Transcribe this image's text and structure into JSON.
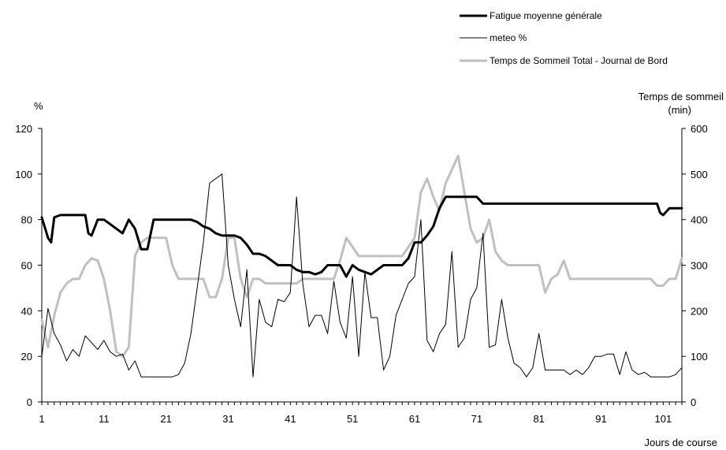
{
  "chart_data": {
    "type": "line",
    "x_label": "Jours de course",
    "y_left_label": "%",
    "y_right_label_line1": "Temps de sommeil",
    "y_right_label_line2": "(min)",
    "y_left_range": [
      0,
      120
    ],
    "y_right_range": [
      0,
      600
    ],
    "y_left_ticks": [
      "0",
      "20",
      "40",
      "60",
      "80",
      "100",
      "120"
    ],
    "y_right_ticks": [
      "0",
      "100",
      "200",
      "300",
      "400",
      "500",
      "600"
    ],
    "x_ticks": [
      "1",
      "11",
      "21",
      "31",
      "41",
      "51",
      "61",
      "71",
      "81",
      "91",
      "101"
    ],
    "x_range": [
      1,
      104
    ],
    "grid": false,
    "legend_position": "top-right",
    "series": [
      {
        "name": "Fatigue moyenne générale",
        "axis": "left",
        "color": "#000000",
        "width": "thick",
        "points": [
          [
            1,
            81
          ],
          [
            2,
            72
          ],
          [
            2.5,
            70
          ],
          [
            3,
            81
          ],
          [
            4,
            82
          ],
          [
            5,
            82
          ],
          [
            6,
            82
          ],
          [
            7,
            82
          ],
          [
            8,
            82
          ],
          [
            8.5,
            74
          ],
          [
            9,
            73
          ],
          [
            10,
            80
          ],
          [
            11,
            80
          ],
          [
            12,
            78
          ],
          [
            13,
            76
          ],
          [
            14,
            74
          ],
          [
            15,
            80
          ],
          [
            16,
            76
          ],
          [
            17,
            67
          ],
          [
            18,
            67
          ],
          [
            19,
            80
          ],
          [
            20,
            80
          ],
          [
            21,
            80
          ],
          [
            22,
            80
          ],
          [
            23,
            80
          ],
          [
            24,
            80
          ],
          [
            25,
            80
          ],
          [
            26,
            79
          ],
          [
            27,
            77
          ],
          [
            28,
            76
          ],
          [
            29,
            74
          ],
          [
            30,
            73
          ],
          [
            31,
            73
          ],
          [
            32,
            73
          ],
          [
            33,
            72
          ],
          [
            34,
            69
          ],
          [
            35,
            65
          ],
          [
            36,
            65
          ],
          [
            37,
            64
          ],
          [
            38,
            62
          ],
          [
            39,
            60
          ],
          [
            40,
            60
          ],
          [
            41,
            60
          ],
          [
            42,
            58
          ],
          [
            43,
            57
          ],
          [
            44,
            57
          ],
          [
            45,
            56
          ],
          [
            46,
            57
          ],
          [
            47,
            60
          ],
          [
            48,
            60
          ],
          [
            49,
            60
          ],
          [
            50,
            55
          ],
          [
            51,
            60
          ],
          [
            52,
            58
          ],
          [
            53,
            57
          ],
          [
            54,
            56
          ],
          [
            55,
            58
          ],
          [
            56,
            60
          ],
          [
            57,
            60
          ],
          [
            58,
            60
          ],
          [
            59,
            60
          ],
          [
            60,
            63
          ],
          [
            61,
            70
          ],
          [
            62,
            70
          ],
          [
            63,
            73
          ],
          [
            64,
            77
          ],
          [
            65,
            85
          ],
          [
            66,
            90
          ],
          [
            67,
            90
          ],
          [
            68,
            90
          ],
          [
            69,
            90
          ],
          [
            70,
            90
          ],
          [
            71,
            90
          ],
          [
            72,
            87
          ],
          [
            73,
            87
          ],
          [
            74,
            87
          ],
          [
            75,
            87
          ],
          [
            80,
            87
          ],
          [
            90,
            87
          ],
          [
            95,
            87
          ],
          [
            100,
            87
          ],
          [
            100.5,
            83
          ],
          [
            101,
            82
          ],
          [
            102,
            85
          ],
          [
            103,
            85
          ],
          [
            104,
            85
          ]
        ]
      },
      {
        "name": "meteo  %",
        "axis": "left",
        "color": "#000000",
        "width": "thin",
        "points": [
          [
            1,
            20
          ],
          [
            2,
            41
          ],
          [
            3,
            30
          ],
          [
            4,
            25
          ],
          [
            5,
            18
          ],
          [
            6,
            23
          ],
          [
            7,
            20
          ],
          [
            8,
            29
          ],
          [
            9,
            26
          ],
          [
            10,
            23
          ],
          [
            11,
            27
          ],
          [
            12,
            22
          ],
          [
            13,
            20
          ],
          [
            14,
            21
          ],
          [
            15,
            14
          ],
          [
            16,
            18
          ],
          [
            17,
            11
          ],
          [
            18,
            11
          ],
          [
            19,
            11
          ],
          [
            20,
            11
          ],
          [
            21,
            11
          ],
          [
            22,
            11
          ],
          [
            23,
            12
          ],
          [
            24,
            17
          ],
          [
            25,
            30
          ],
          [
            26,
            50
          ],
          [
            27,
            70
          ],
          [
            28,
            96
          ],
          [
            29,
            98
          ],
          [
            30,
            100
          ],
          [
            31,
            60
          ],
          [
            32,
            45
          ],
          [
            33,
            33
          ],
          [
            34,
            58
          ],
          [
            35,
            11
          ],
          [
            36,
            45
          ],
          [
            37,
            35
          ],
          [
            38,
            33
          ],
          [
            39,
            45
          ],
          [
            40,
            44
          ],
          [
            41,
            48
          ],
          [
            42,
            90
          ],
          [
            43,
            52
          ],
          [
            44,
            33
          ],
          [
            45,
            38
          ],
          [
            46,
            38
          ],
          [
            47,
            30
          ],
          [
            48,
            53
          ],
          [
            49,
            35
          ],
          [
            50,
            28
          ],
          [
            51,
            55
          ],
          [
            52,
            20
          ],
          [
            53,
            57
          ],
          [
            54,
            37
          ],
          [
            55,
            37
          ],
          [
            56,
            14
          ],
          [
            57,
            20
          ],
          [
            58,
            38
          ],
          [
            59,
            45
          ],
          [
            60,
            52
          ],
          [
            61,
            55
          ],
          [
            62,
            80
          ],
          [
            63,
            27
          ],
          [
            64,
            22
          ],
          [
            65,
            30
          ],
          [
            66,
            34
          ],
          [
            67,
            66
          ],
          [
            68,
            24
          ],
          [
            69,
            28
          ],
          [
            70,
            45
          ],
          [
            71,
            50
          ],
          [
            72,
            74
          ],
          [
            73,
            24
          ],
          [
            74,
            25
          ],
          [
            75,
            45
          ],
          [
            76,
            28
          ],
          [
            77,
            17
          ],
          [
            78,
            15
          ],
          [
            79,
            11
          ],
          [
            80,
            15
          ],
          [
            81,
            30
          ],
          [
            82,
            14
          ],
          [
            83,
            14
          ],
          [
            84,
            14
          ],
          [
            85,
            14
          ],
          [
            86,
            12
          ],
          [
            87,
            14
          ],
          [
            88,
            12
          ],
          [
            89,
            15
          ],
          [
            90,
            20
          ],
          [
            91,
            20
          ],
          [
            92,
            21
          ],
          [
            93,
            21
          ],
          [
            94,
            12
          ],
          [
            95,
            22
          ],
          [
            96,
            14
          ],
          [
            97,
            12
          ],
          [
            98,
            13
          ],
          [
            99,
            11
          ],
          [
            100,
            11
          ],
          [
            101,
            11
          ],
          [
            102,
            11
          ],
          [
            103,
            12
          ],
          [
            104,
            15
          ]
        ]
      },
      {
        "name": "Temps de Sommeil Total - Journal de Bord",
        "axis": "right",
        "color": "#c0c0c0",
        "width": "thick",
        "points": [
          [
            1,
            180
          ],
          [
            2,
            120
          ],
          [
            3,
            190
          ],
          [
            4,
            240
          ],
          [
            5,
            260
          ],
          [
            6,
            270
          ],
          [
            7,
            270
          ],
          [
            8,
            300
          ],
          [
            9,
            315
          ],
          [
            10,
            310
          ],
          [
            11,
            270
          ],
          [
            12,
            200
          ],
          [
            13,
            110
          ],
          [
            14,
            100
          ],
          [
            15,
            120
          ],
          [
            16,
            320
          ],
          [
            17,
            350
          ],
          [
            18,
            360
          ],
          [
            19,
            360
          ],
          [
            20,
            360
          ],
          [
            21,
            360
          ],
          [
            22,
            300
          ],
          [
            23,
            270
          ],
          [
            24,
            270
          ],
          [
            25,
            270
          ],
          [
            26,
            270
          ],
          [
            27,
            270
          ],
          [
            28,
            230
          ],
          [
            29,
            230
          ],
          [
            30,
            270
          ],
          [
            31,
            360
          ],
          [
            32,
            360
          ],
          [
            33,
            270
          ],
          [
            34,
            230
          ],
          [
            35,
            270
          ],
          [
            36,
            270
          ],
          [
            37,
            260
          ],
          [
            38,
            260
          ],
          [
            39,
            260
          ],
          [
            40,
            260
          ],
          [
            41,
            260
          ],
          [
            42,
            260
          ],
          [
            43,
            270
          ],
          [
            44,
            270
          ],
          [
            45,
            270
          ],
          [
            46,
            270
          ],
          [
            47,
            270
          ],
          [
            48,
            270
          ],
          [
            49,
            310
          ],
          [
            50,
            360
          ],
          [
            51,
            340
          ],
          [
            52,
            320
          ],
          [
            53,
            320
          ],
          [
            54,
            320
          ],
          [
            55,
            320
          ],
          [
            56,
            320
          ],
          [
            57,
            320
          ],
          [
            58,
            320
          ],
          [
            59,
            320
          ],
          [
            60,
            340
          ],
          [
            61,
            360
          ],
          [
            62,
            460
          ],
          [
            63,
            490
          ],
          [
            64,
            450
          ],
          [
            65,
            420
          ],
          [
            66,
            480
          ],
          [
            67,
            510
          ],
          [
            68,
            540
          ],
          [
            69,
            460
          ],
          [
            70,
            380
          ],
          [
            71,
            350
          ],
          [
            72,
            360
          ],
          [
            73,
            400
          ],
          [
            74,
            330
          ],
          [
            75,
            310
          ],
          [
            76,
            300
          ],
          [
            77,
            300
          ],
          [
            78,
            300
          ],
          [
            79,
            300
          ],
          [
            80,
            300
          ],
          [
            81,
            300
          ],
          [
            82,
            240
          ],
          [
            83,
            270
          ],
          [
            84,
            280
          ],
          [
            85,
            310
          ],
          [
            86,
            270
          ],
          [
            87,
            270
          ],
          [
            88,
            270
          ],
          [
            89,
            270
          ],
          [
            90,
            270
          ],
          [
            91,
            270
          ],
          [
            92,
            270
          ],
          [
            93,
            270
          ],
          [
            94,
            270
          ],
          [
            95,
            270
          ],
          [
            96,
            270
          ],
          [
            97,
            270
          ],
          [
            98,
            270
          ],
          [
            99,
            270
          ],
          [
            100,
            255
          ],
          [
            101,
            255
          ],
          [
            102,
            270
          ],
          [
            103,
            270
          ],
          [
            104,
            315
          ]
        ]
      }
    ]
  }
}
